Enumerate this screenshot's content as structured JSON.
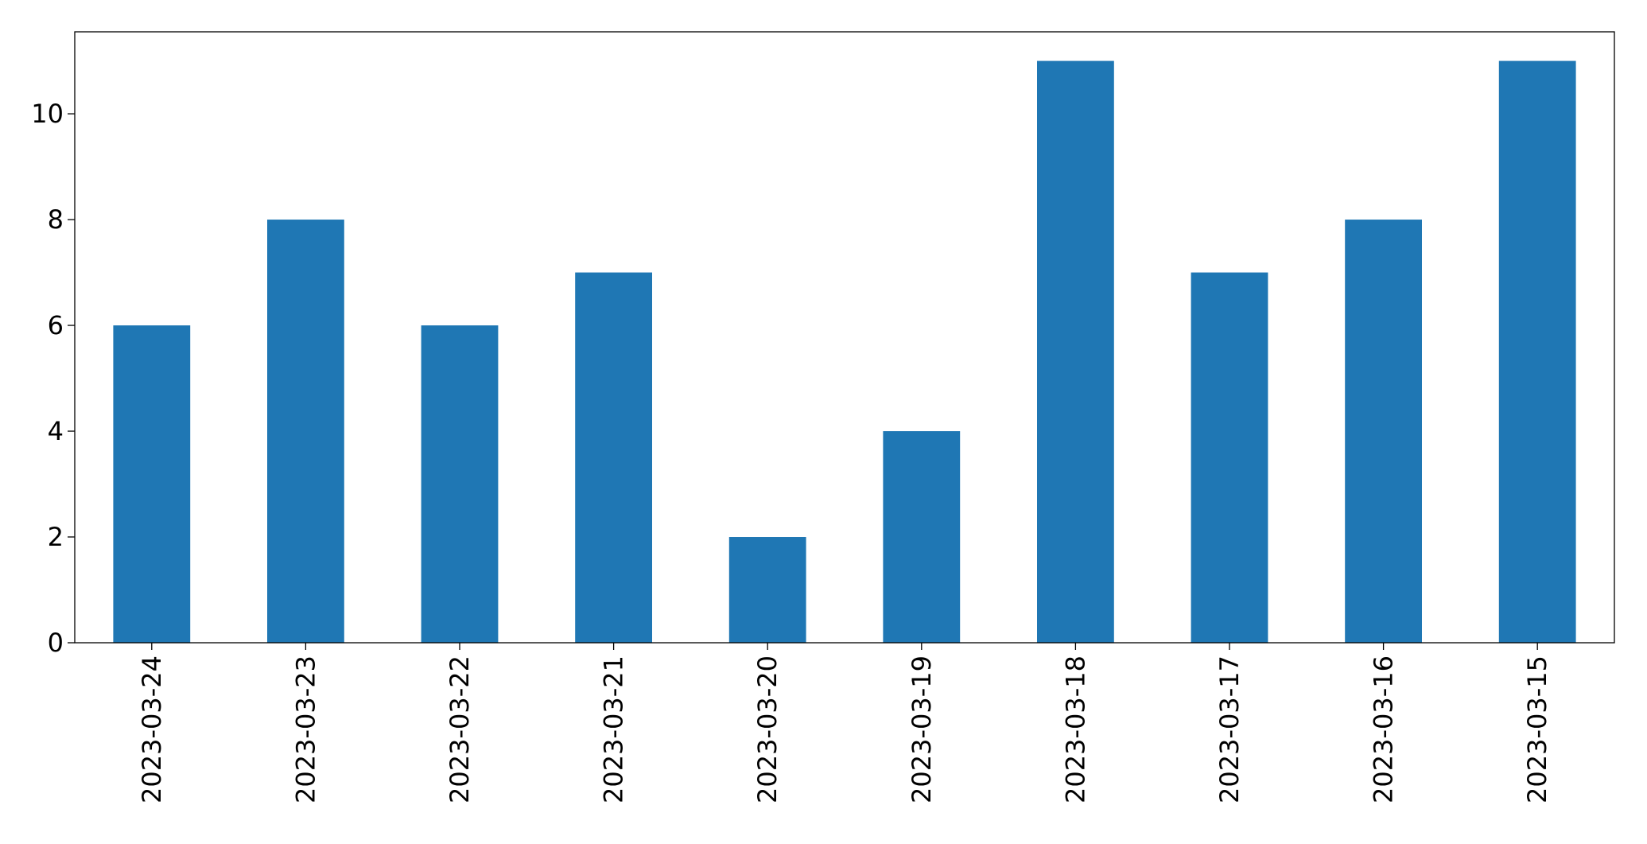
{
  "chart_data": {
    "type": "bar",
    "categories": [
      "2023-03-24",
      "2023-03-23",
      "2023-03-22",
      "2023-03-21",
      "2023-03-20",
      "2023-03-19",
      "2023-03-18",
      "2023-03-17",
      "2023-03-16",
      "2023-03-15"
    ],
    "values": [
      6,
      8,
      6,
      7,
      2,
      4,
      11,
      7,
      8,
      11
    ],
    "color": "#1f77b4",
    "ylim": [
      0,
      11.55
    ],
    "yticks": [
      0,
      2,
      4,
      6,
      8,
      10
    ],
    "grid": false
  }
}
